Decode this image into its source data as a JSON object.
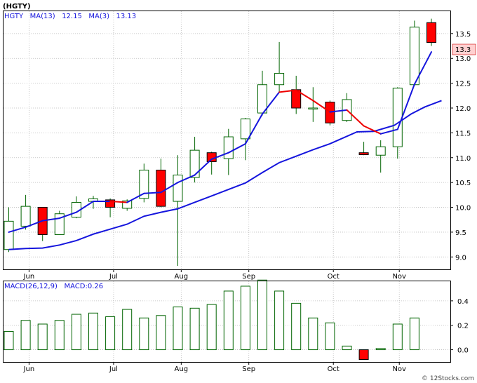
{
  "colors": {
    "background": "#ffffff",
    "panel_border": "#000000",
    "grid": "#bbbbbb",
    "candle_up_border": "#006400",
    "candle_down_fill": "#ff0000",
    "wick": "#006400",
    "ma_fast": "#1515dd",
    "ma_fast_down": "#ee0000",
    "ma_slow": "#1515dd",
    "macd_bar": "#006400",
    "macd_bar_neg": "#ff0000",
    "header_text": "#1515dd",
    "price_tag_bg": "#ffd0d0",
    "price_tag_border": "#cc0000"
  },
  "header": {
    "ticker": "(HGTY)",
    "ma_line": "HGTY   MA(13)   12.15   MA(3)   13.13",
    "macd_line": "MACD(26,12,9)   MACD:0.26"
  },
  "price_tag": "13.3",
  "watermark": "© 12Stocks.com",
  "chart_data": [
    {
      "type": "candlestick",
      "title": "(HGTY)",
      "ylim": [
        8.75,
        13.95
      ],
      "grid": true,
      "y_ticks": [
        9.0,
        9.5,
        10.0,
        10.5,
        11.0,
        11.5,
        12.0,
        12.5,
        13.0,
        13.5
      ],
      "y_tick_labels": [
        "9.0",
        "9.5",
        "10.0",
        "10.5",
        "11.0",
        "11.5",
        "12.0",
        "12.5",
        "13.0",
        "13.5"
      ],
      "x_ticks": [
        {
          "label": "Jun",
          "week": 1.2
        },
        {
          "label": "Jul",
          "week": 6.2
        },
        {
          "label": "Aug",
          "week": 10.2
        },
        {
          "label": "Sep",
          "week": 14.2
        },
        {
          "label": "Oct",
          "week": 19.2
        },
        {
          "label": "Nov",
          "week": 23.1
        }
      ],
      "candles": [
        {
          "week": 0,
          "open": 9.15,
          "close": 9.72,
          "high": 10.0,
          "low": 9.1
        },
        {
          "week": 1,
          "open": 9.62,
          "close": 10.02,
          "high": 10.25,
          "low": 9.55
        },
        {
          "week": 2,
          "open": 10.0,
          "close": 9.45,
          "high": 10.0,
          "low": 9.32
        },
        {
          "week": 3,
          "open": 9.45,
          "close": 9.87,
          "high": 9.93,
          "low": 9.45
        },
        {
          "week": 4,
          "open": 9.8,
          "close": 10.1,
          "high": 10.22,
          "low": 9.78
        },
        {
          "week": 5,
          "open": 10.12,
          "close": 10.17,
          "high": 10.23,
          "low": 9.97
        },
        {
          "week": 6,
          "open": 10.15,
          "close": 10.0,
          "high": 10.18,
          "low": 9.8
        },
        {
          "week": 7,
          "open": 9.98,
          "close": 10.13,
          "high": 10.16,
          "low": 9.93
        },
        {
          "week": 8,
          "open": 10.18,
          "close": 10.75,
          "high": 10.88,
          "low": 10.1
        },
        {
          "week": 9,
          "open": 10.75,
          "close": 10.02,
          "high": 10.98,
          "low": 10.0
        },
        {
          "week": 10,
          "open": 10.12,
          "close": 10.65,
          "high": 11.05,
          "low": 8.82
        },
        {
          "week": 11,
          "open": 10.6,
          "close": 11.15,
          "high": 11.42,
          "low": 10.5
        },
        {
          "week": 12,
          "open": 11.1,
          "close": 10.92,
          "high": 11.12,
          "low": 10.66
        },
        {
          "week": 13,
          "open": 10.98,
          "close": 11.42,
          "high": 11.58,
          "low": 10.65
        },
        {
          "week": 14,
          "open": 11.38,
          "close": 11.78,
          "high": 11.8,
          "low": 10.95
        },
        {
          "week": 15,
          "open": 11.9,
          "close": 12.47,
          "high": 12.75,
          "low": 11.85
        },
        {
          "week": 16,
          "open": 12.47,
          "close": 12.7,
          "high": 13.33,
          "low": 12.32
        },
        {
          "week": 17,
          "open": 12.37,
          "close": 12.0,
          "high": 12.65,
          "low": 11.88
        },
        {
          "week": 18,
          "open": 11.98,
          "close": 12.0,
          "high": 12.42,
          "low": 11.72
        },
        {
          "week": 19,
          "open": 12.12,
          "close": 11.7,
          "high": 12.15,
          "low": 11.65
        },
        {
          "week": 20,
          "open": 11.75,
          "close": 12.17,
          "high": 12.3,
          "low": 11.72
        },
        {
          "week": 21,
          "open": 11.1,
          "close": 11.06,
          "high": 11.32,
          "low": 11.05
        },
        {
          "week": 22,
          "open": 11.05,
          "close": 11.22,
          "high": 11.35,
          "low": 10.7
        },
        {
          "week": 23,
          "open": 11.22,
          "close": 12.4,
          "high": 12.42,
          "low": 10.98
        },
        {
          "week": 24,
          "open": 12.47,
          "close": 13.63,
          "high": 13.76,
          "low": 12.45
        },
        {
          "week": 25,
          "open": 13.72,
          "close": 13.32,
          "high": 13.8,
          "low": 13.25
        }
      ],
      "series": [
        {
          "name": "MA(13)",
          "values": [
            9.15,
            9.17,
            9.18,
            9.24,
            9.33,
            9.46,
            9.56,
            9.66,
            9.82,
            9.9,
            9.97,
            10.1,
            10.23,
            10.36,
            10.49,
            10.7,
            10.9,
            11.03,
            11.16,
            11.28,
            11.37,
            11.52,
            11.53,
            11.65,
            11.88,
            12.02,
            12.15
          ],
          "weeks": [
            0,
            1,
            2,
            3,
            4,
            5,
            6,
            7,
            8,
            9,
            10,
            11,
            12,
            13,
            14,
            15,
            16,
            17,
            18,
            19,
            19.6,
            20.6,
            21.6,
            22.8,
            23.8,
            24.6,
            25.6
          ]
        },
        {
          "name": "MA(3)",
          "weeks": [
            0,
            1,
            2,
            3,
            4,
            5,
            6,
            7,
            8,
            9,
            10,
            11,
            12,
            13,
            14,
            15,
            16,
            17,
            18,
            19,
            20,
            21,
            22,
            23,
            24,
            25
          ],
          "values": [
            9.5,
            9.6,
            9.73,
            9.78,
            9.9,
            10.12,
            10.12,
            10.1,
            10.28,
            10.3,
            10.5,
            10.65,
            10.97,
            11.1,
            11.28,
            11.88,
            12.32,
            12.36,
            12.15,
            11.92,
            11.96,
            11.64,
            11.48,
            11.57,
            12.48,
            13.13
          ],
          "down_segments": [
            [
              6,
              7
            ],
            [
              16,
              17
            ],
            [
              17,
              18
            ],
            [
              18,
              19
            ],
            [
              20,
              21
            ],
            [
              21,
              22
            ]
          ]
        }
      ]
    },
    {
      "type": "bar",
      "title": "MACD(26,12,9)",
      "ylim": [
        -0.1,
        0.56
      ],
      "y_ticks": [
        0.0,
        0.2,
        0.4
      ],
      "y_tick_labels": [
        "0.0",
        "0.2",
        "0.4"
      ],
      "x_ticks": [
        {
          "label": "Jun",
          "week": 1.2
        },
        {
          "label": "Jul",
          "week": 6.2
        },
        {
          "label": "Aug",
          "week": 10.2
        },
        {
          "label": "Sep",
          "week": 14.2
        },
        {
          "label": "Oct",
          "week": 19.2
        },
        {
          "label": "Nov",
          "week": 23.1
        }
      ],
      "values": [
        0.15,
        0.24,
        0.21,
        0.24,
        0.29,
        0.3,
        0.27,
        0.33,
        0.26,
        0.28,
        0.35,
        0.34,
        0.37,
        0.48,
        0.52,
        0.57,
        0.48,
        0.38,
        0.26,
        0.22,
        0.03,
        -0.08,
        0.01,
        0.21,
        0.26
      ],
      "weeks": [
        0,
        1,
        2,
        3,
        4,
        5,
        6,
        7,
        8,
        9,
        10,
        11,
        12,
        13,
        14,
        15,
        16,
        17,
        18,
        19,
        20,
        21,
        22,
        23,
        24
      ]
    }
  ]
}
